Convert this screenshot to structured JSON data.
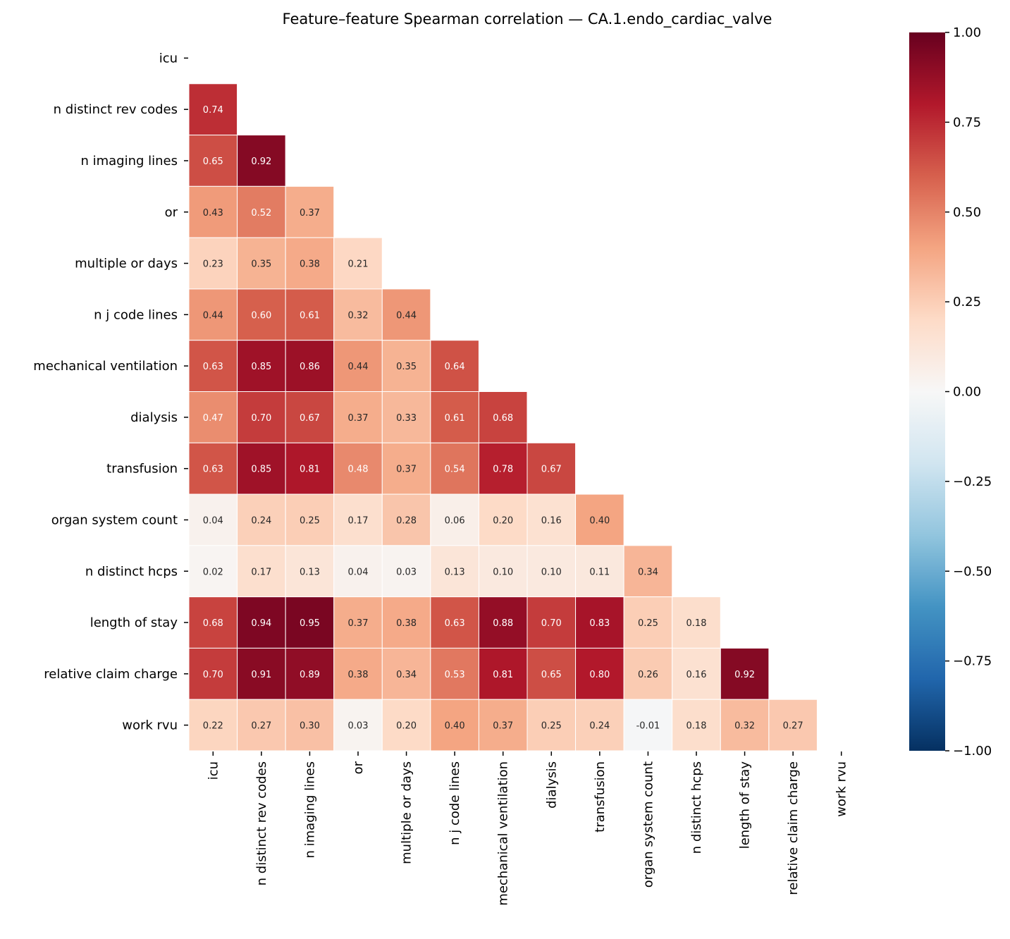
{
  "chart_data": {
    "type": "heatmap",
    "title": "Feature–feature Spearman correlation — CA.1.endo_cardiac_valve",
    "labels": [
      "icu",
      "n distinct rev codes",
      "n imaging lines",
      "or",
      "multiple or days",
      "n j code lines",
      "mechanical ventilation",
      "dialysis",
      "transfusion",
      "organ system count",
      "n distinct hcps",
      "length of stay",
      "relative claim charge",
      "work rvu"
    ],
    "mask": "upper triangle including diagonal",
    "lower_triangle": [
      [],
      [
        0.74
      ],
      [
        0.65,
        0.92
      ],
      [
        0.43,
        0.52,
        0.37
      ],
      [
        0.23,
        0.35,
        0.38,
        0.21
      ],
      [
        0.44,
        0.6,
        0.61,
        0.32,
        0.44
      ],
      [
        0.63,
        0.85,
        0.86,
        0.44,
        0.35,
        0.64
      ],
      [
        0.47,
        0.7,
        0.67,
        0.37,
        0.33,
        0.61,
        0.68
      ],
      [
        0.63,
        0.85,
        0.81,
        0.48,
        0.37,
        0.54,
        0.78,
        0.67
      ],
      [
        0.04,
        0.24,
        0.25,
        0.17,
        0.28,
        0.06,
        0.2,
        0.16,
        0.4
      ],
      [
        0.02,
        0.17,
        0.13,
        0.04,
        0.03,
        0.13,
        0.1,
        0.1,
        0.11,
        0.34
      ],
      [
        0.68,
        0.94,
        0.95,
        0.37,
        0.38,
        0.63,
        0.88,
        0.7,
        0.83,
        0.25,
        0.18
      ],
      [
        0.7,
        0.91,
        0.89,
        0.38,
        0.34,
        0.53,
        0.81,
        0.65,
        0.8,
        0.26,
        0.16,
        0.92
      ],
      [
        0.22,
        0.27,
        0.3,
        0.03,
        0.2,
        0.4,
        0.37,
        0.25,
        0.24,
        -0.01,
        0.18,
        0.32,
        0.27
      ]
    ],
    "colormap": "RdBu_r",
    "vmin": -1.0,
    "vmax": 1.0,
    "colorbar_ticks": [
      "1.00",
      "0.75",
      "0.50",
      "0.25",
      "0.00",
      "−0.25",
      "−0.50",
      "−0.75",
      "−1.00"
    ],
    "colorbar_placement": "right",
    "grid": false
  }
}
